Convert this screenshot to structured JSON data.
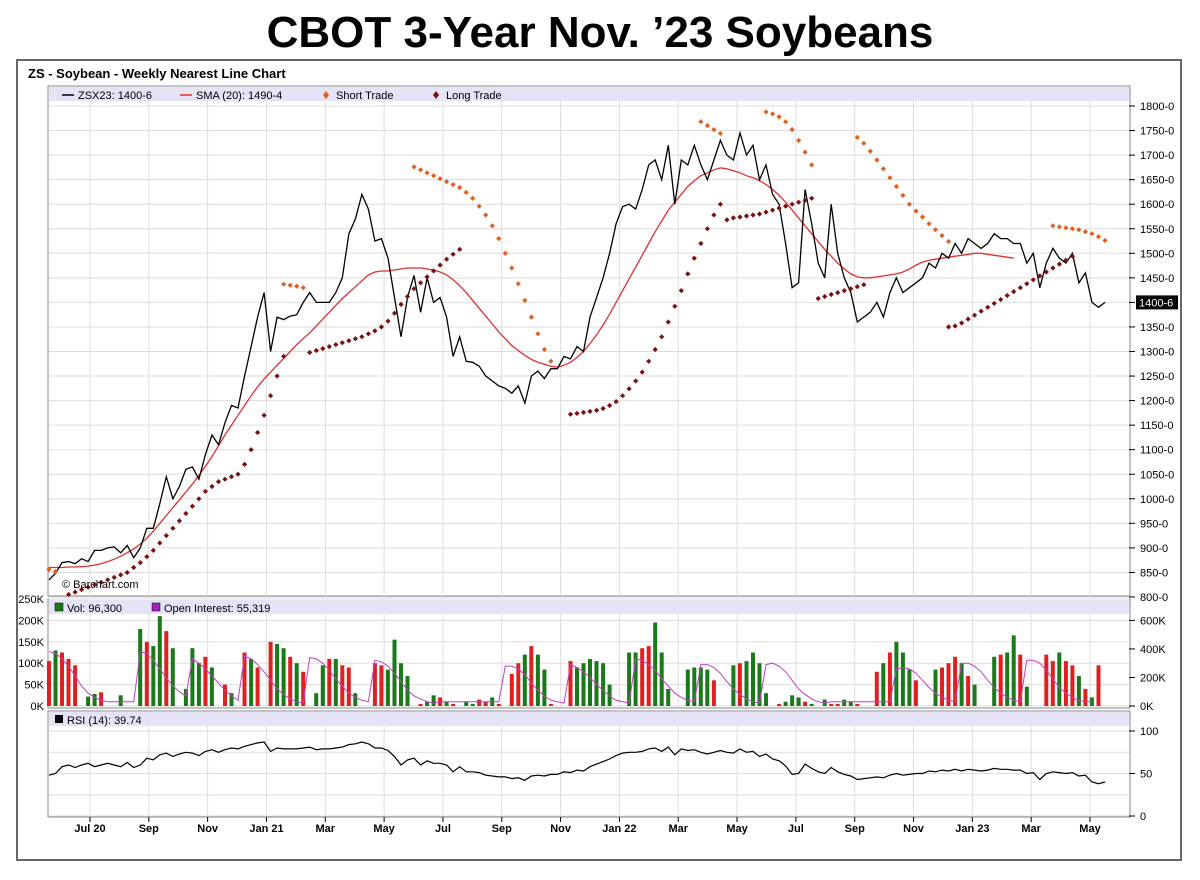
{
  "page_title": "CBOT 3-Year Nov. ’23 Soybeans",
  "chart_data": {
    "type": "line",
    "title": "ZS - Soybean - Weekly Nearest Line Chart",
    "watermark": "© Barchart.com",
    "x_tick_labels": [
      "Jul 20",
      "Sep",
      "Nov",
      "Jan 21",
      "Mar",
      "May",
      "Jul",
      "Sep",
      "Nov",
      "Jan 22",
      "Mar",
      "May",
      "Jul",
      "Sep",
      "Nov",
      "Jan 23",
      "Mar",
      "May"
    ],
    "price_panel": {
      "ylim": [
        800,
        1800
      ],
      "y_ticks": [
        "1800-0",
        "1750-0",
        "1700-0",
        "1650-0",
        "1600-0",
        "1550-0",
        "1500-0",
        "1450-0",
        "1400-0",
        "1350-0",
        "1300-0",
        "1250-0",
        "1200-0",
        "1150-0",
        "1100-0",
        "1050-0",
        "1000-0",
        "950-0",
        "900-0",
        "850-0",
        "800-0"
      ],
      "last_price_label": "1400-6",
      "legend": [
        {
          "label": "ZSX23: 1400-6",
          "color": "#000000",
          "symbol": "line"
        },
        {
          "label": "SMA (20): 1490-4",
          "color": "#e03030",
          "symbol": "line"
        },
        {
          "label": "Short Trade",
          "color": "#e06020",
          "symbol": "diamond"
        },
        {
          "label": "Long Trade",
          "color": "#7a1010",
          "symbol": "diamond"
        }
      ],
      "series": [
        {
          "name": "ZSX23",
          "color": "#000000",
          "values": [
            835,
            848,
            870,
            872,
            868,
            878,
            872,
            895,
            895,
            900,
            902,
            890,
            905,
            880,
            900,
            940,
            940,
            990,
            1045,
            1000,
            1025,
            1060,
            1065,
            1040,
            1090,
            1130,
            1110,
            1155,
            1190,
            1185,
            1250,
            1310,
            1370,
            1420,
            1300,
            1370,
            1365,
            1372,
            1375,
            1400,
            1420,
            1400,
            1400,
            1400,
            1420,
            1450,
            1540,
            1570,
            1620,
            1590,
            1525,
            1530,
            1490,
            1410,
            1330,
            1410,
            1455,
            1380,
            1450,
            1400,
            1410,
            1370,
            1290,
            1330,
            1280,
            1278,
            1270,
            1250,
            1240,
            1230,
            1225,
            1215,
            1230,
            1195,
            1250,
            1260,
            1245,
            1265,
            1265,
            1290,
            1285,
            1310,
            1300,
            1370,
            1410,
            1450,
            1500,
            1560,
            1595,
            1600,
            1590,
            1630,
            1680,
            1690,
            1650,
            1720,
            1600,
            1690,
            1680,
            1720,
            1680,
            1650,
            1690,
            1730,
            1700,
            1690,
            1745,
            1700,
            1720,
            1650,
            1680,
            1620,
            1600,
            1520,
            1430,
            1440,
            1630,
            1560,
            1480,
            1450,
            1600,
            1500,
            1450,
            1420,
            1360,
            1370,
            1380,
            1400,
            1370,
            1420,
            1450,
            1420,
            1430,
            1440,
            1450,
            1480,
            1470,
            1500,
            1490,
            1520,
            1500,
            1530,
            1520,
            1510,
            1520,
            1540,
            1530,
            1530,
            1520,
            1520,
            1480,
            1500,
            1430,
            1480,
            1510,
            1490,
            1480,
            1500,
            1440,
            1460,
            1400,
            1390,
            1400
          ]
        },
        {
          "name": "SMA (20)",
          "color": "#e03030",
          "values": [
            860,
            860,
            860,
            861,
            861,
            862,
            863,
            865,
            868,
            872,
            877,
            883,
            890,
            898,
            908,
            920,
            934,
            950,
            966,
            982,
            998,
            1014,
            1030,
            1048,
            1066,
            1086,
            1108,
            1130,
            1150,
            1170,
            1190,
            1210,
            1228,
            1244,
            1258,
            1272,
            1286,
            1300,
            1314,
            1326,
            1338,
            1352,
            1366,
            1380,
            1394,
            1408,
            1420,
            1432,
            1444,
            1456,
            1462,
            1464,
            1464,
            1466,
            1468,
            1470,
            1470,
            1470,
            1468,
            1466,
            1462,
            1456,
            1446,
            1434,
            1420,
            1404,
            1388,
            1372,
            1356,
            1340,
            1326,
            1312,
            1302,
            1292,
            1284,
            1278,
            1274,
            1270,
            1268,
            1272,
            1278,
            1288,
            1300,
            1316,
            1334,
            1354,
            1376,
            1400,
            1424,
            1448,
            1472,
            1496,
            1520,
            1544,
            1566,
            1588,
            1604,
            1620,
            1636,
            1648,
            1658,
            1664,
            1670,
            1674,
            1672,
            1668,
            1664,
            1658,
            1654,
            1648,
            1640,
            1630,
            1618,
            1604,
            1588,
            1572,
            1556,
            1540,
            1524,
            1508,
            1494,
            1480,
            1468,
            1458,
            1452,
            1450,
            1450,
            1452,
            1454,
            1456,
            1458,
            1462,
            1468,
            1476,
            1482,
            1486,
            1488,
            1490,
            1492,
            1494,
            1496,
            1498,
            1500,
            1500,
            1498,
            1496,
            1494,
            1492,
            1490
          ]
        }
      ],
      "long_trade_segments": [
        {
          "start_index": 3,
          "values": [
            805,
            810,
            815,
            820,
            825,
            830,
            835,
            840,
            845,
            850,
            860,
            870,
            882,
            895,
            910,
            925,
            940,
            955,
            970,
            985,
            1000,
            1015,
            1025,
            1035,
            1040,
            1045,
            1050,
            1070,
            1100,
            1135,
            1170,
            1210,
            1250,
            1290
          ]
        },
        {
          "start_index": 40,
          "values": [
            1298,
            1302,
            1306,
            1310,
            1314,
            1318,
            1322,
            1326,
            1330,
            1336,
            1342,
            1350,
            1362,
            1378,
            1396,
            1412,
            1428,
            1440,
            1452,
            1464,
            1476,
            1488,
            1498,
            1508
          ]
        },
        {
          "start_index": 80,
          "values": [
            1172,
            1174,
            1176,
            1178,
            1180,
            1184,
            1190,
            1198,
            1210,
            1224,
            1240,
            1258,
            1280,
            1304,
            1330,
            1360,
            1392,
            1424,
            1458,
            1490,
            1520,
            1550,
            1578,
            1600
          ]
        },
        {
          "start_index": 104,
          "values": [
            1568,
            1572,
            1574,
            1576,
            1578,
            1580,
            1584,
            1588,
            1592,
            1596,
            1600,
            1604,
            1608,
            1612
          ]
        },
        {
          "start_index": 118,
          "values": [
            1408,
            1412,
            1416,
            1420,
            1424,
            1428,
            1432,
            1436
          ]
        },
        {
          "start_index": 138,
          "values": [
            1350,
            1352,
            1358,
            1366,
            1374,
            1382,
            1390,
            1398,
            1406,
            1414,
            1422,
            1430,
            1438,
            1446,
            1454,
            1462,
            1470,
            1478,
            1486,
            1494
          ]
        }
      ],
      "short_trade_segments": [
        {
          "start_index": 0,
          "values": [
            856,
            852
          ]
        },
        {
          "start_index": 36,
          "values": [
            1437,
            1435,
            1433,
            1430
          ]
        },
        {
          "start_index": 56,
          "values": [
            1676,
            1670,
            1664,
            1658,
            1652,
            1646,
            1640,
            1634,
            1624,
            1612,
            1596,
            1578,
            1556,
            1530,
            1500,
            1470,
            1438,
            1404,
            1370,
            1336,
            1304,
            1280
          ]
        },
        {
          "start_index": 100,
          "values": [
            1768,
            1760,
            1752,
            1744
          ]
        },
        {
          "start_index": 110,
          "values": [
            1788,
            1784,
            1778,
            1768,
            1752,
            1730,
            1706,
            1680
          ]
        },
        {
          "start_index": 124,
          "values": [
            1736,
            1724,
            1708,
            1690,
            1672,
            1654,
            1636,
            1618,
            1600,
            1586,
            1574,
            1560,
            1548,
            1536,
            1524
          ]
        },
        {
          "start_index": 154,
          "values": [
            1556,
            1554,
            1552,
            1550,
            1548,
            1544,
            1540,
            1534,
            1526
          ]
        }
      ]
    },
    "volume_panel": {
      "legend": [
        {
          "label": "Vol: 96,300",
          "color": "#1a7a1a"
        },
        {
          "label": "Open Interest: 55,319",
          "color": "#a020c0"
        }
      ],
      "left_ylim": [
        0,
        250000
      ],
      "left_ticks": [
        "250K",
        "200K",
        "150K",
        "100K",
        "50K",
        "0K"
      ],
      "right_ylim": [
        0,
        750000
      ],
      "right_ticks": [
        "600K",
        "400K",
        "200K",
        "0K"
      ],
      "volume_k": [
        105,
        130,
        125,
        110,
        95,
        0,
        22,
        28,
        32,
        0,
        0,
        25,
        0,
        0,
        180,
        150,
        140,
        210,
        175,
        135,
        0,
        40,
        135,
        100,
        115,
        90,
        0,
        50,
        30,
        0,
        125,
        110,
        90,
        0,
        150,
        145,
        135,
        115,
        100,
        80,
        0,
        30,
        95,
        110,
        110,
        95,
        90,
        30,
        0,
        0,
        100,
        95,
        85,
        155,
        100,
        70,
        0,
        5,
        10,
        25,
        20,
        10,
        5,
        0,
        10,
        5,
        15,
        10,
        20,
        5,
        0,
        75,
        100,
        120,
        140,
        120,
        85,
        5,
        0,
        0,
        105,
        90,
        100,
        110,
        105,
        100,
        50,
        0,
        0,
        125,
        125,
        135,
        140,
        195,
        125,
        40,
        0,
        0,
        85,
        90,
        90,
        85,
        60,
        0,
        0,
        95,
        100,
        105,
        125,
        100,
        30,
        0,
        5,
        10,
        25,
        20,
        10,
        5,
        0,
        15,
        5,
        5,
        15,
        10,
        5,
        0,
        0,
        80,
        100,
        125,
        150,
        125,
        85,
        60,
        0,
        0,
        85,
        90,
        100,
        115,
        100,
        70,
        50,
        0,
        0,
        115,
        120,
        125,
        165,
        120,
        45,
        0,
        0,
        120,
        105,
        125,
        105,
        95,
        70,
        40,
        20,
        95
      ],
      "volume_colors": "rgrrrgggrrggrrgrggrgrgggrggrgrrgrrrggrgrgggrgrrgrgrrgggggrggrgrgggrrgrrrrgrggrggrggggggrrggrrggggrggggrgrgrggggrrgggrgrgrrggrgrrgrgggrrrgrrrgrggggrggrgrrrrgrrgrgrg",
      "open_interest_k": [
        380,
        370,
        330,
        280,
        210,
        140,
        90,
        60,
        40,
        30,
        30,
        30,
        30,
        30,
        380,
        370,
        320,
        260,
        200,
        140,
        100,
        70,
        330,
        300,
        260,
        210,
        160,
        110,
        70,
        40,
        350,
        330,
        290,
        240,
        180,
        120,
        80,
        50,
        30,
        20,
        340,
        330,
        300,
        250,
        190,
        140,
        90,
        60,
        40,
        30,
        320,
        310,
        280,
        230,
        170,
        110,
        70,
        50,
        30,
        20,
        30,
        30,
        30,
        30,
        30,
        30,
        30,
        30,
        30,
        30,
        280,
        280,
        260,
        220,
        160,
        110,
        70,
        40,
        30,
        20,
        290,
        270,
        240,
        200,
        150,
        110,
        70,
        40,
        30,
        20,
        330,
        320,
        290,
        250,
        190,
        140,
        90,
        60,
        40,
        30,
        290,
        290,
        270,
        230,
        170,
        120,
        80,
        50,
        30,
        20,
        290,
        300,
        280,
        240,
        180,
        120,
        80,
        50,
        30,
        20,
        30,
        30,
        30,
        30,
        30,
        30,
        30,
        30,
        30,
        30,
        260,
        270,
        260,
        230,
        180,
        130,
        90,
        60,
        40,
        30,
        300,
        300,
        280,
        240,
        180,
        130,
        90,
        60,
        40,
        30,
        320,
        320,
        300,
        250,
        190,
        130,
        90,
        60,
        40,
        30,
        30
      ]
    },
    "rsi_panel": {
      "legend": "RSI (14): 39.74",
      "ylim": [
        0,
        100
      ],
      "y_ticks": [
        "100",
        "50",
        "0"
      ],
      "values": [
        48,
        50,
        58,
        60,
        57,
        60,
        62,
        58,
        60,
        62,
        60,
        58,
        63,
        57,
        60,
        68,
        66,
        72,
        74,
        70,
        73,
        75,
        74,
        71,
        76,
        78,
        75,
        78,
        80,
        79,
        82,
        84,
        86,
        87,
        76,
        80,
        79,
        79,
        79,
        80,
        81,
        78,
        79,
        79,
        80,
        81,
        84,
        85,
        87,
        85,
        80,
        80,
        77,
        70,
        60,
        66,
        68,
        60,
        65,
        62,
        62,
        60,
        52,
        58,
        52,
        52,
        51,
        48,
        47,
        46,
        46,
        44,
        45,
        42,
        47,
        48,
        47,
        49,
        49,
        52,
        51,
        54,
        53,
        58,
        61,
        64,
        67,
        71,
        74,
        75,
        75,
        76,
        79,
        80,
        76,
        81,
        72,
        79,
        77,
        78,
        75,
        73,
        75,
        77,
        75,
        74,
        79,
        75,
        76,
        70,
        73,
        67,
        65,
        59,
        49,
        50,
        61,
        56,
        52,
        50,
        57,
        52,
        49,
        47,
        43,
        44,
        45,
        46,
        45,
        48,
        50,
        48,
        49,
        50,
        50,
        53,
        52,
        54,
        53,
        55,
        53,
        55,
        54,
        53,
        54,
        56,
        55,
        55,
        54,
        54,
        50,
        51,
        43,
        50,
        52,
        51,
        50,
        51,
        47,
        48,
        40,
        38,
        40
      ]
    }
  }
}
